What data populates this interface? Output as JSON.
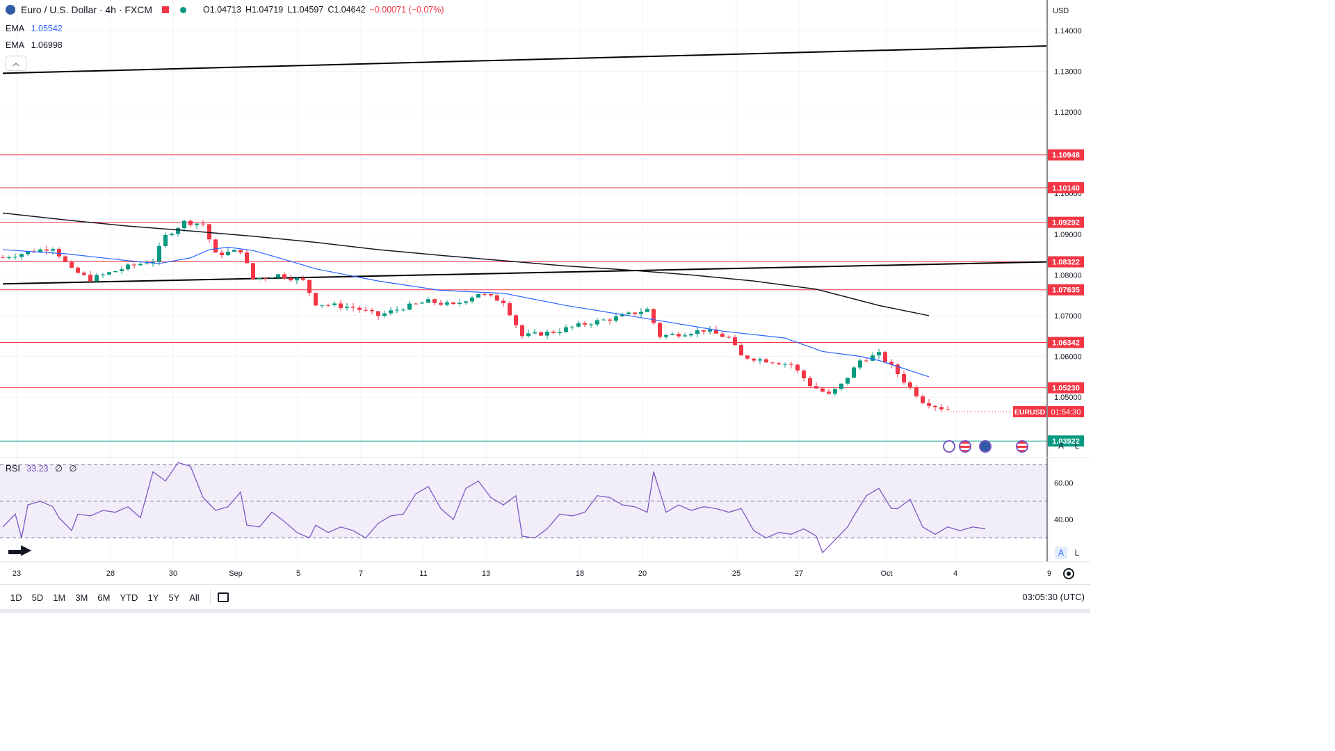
{
  "header": {
    "symbol_title": "Euro / U.S. Dollar · 4h · FXCM",
    "open": "O1.04713",
    "high": "H1.04719",
    "low": "L1.04597",
    "close": "C1.04642",
    "change": "−0.00071 (−0.07%)"
  },
  "ema_fast": {
    "label": "EMA",
    "value": "1.05542",
    "color": "#2962ff"
  },
  "ema_slow": {
    "label": "EMA",
    "value": "1.06998",
    "color": "#131722"
  },
  "currency": "USD",
  "price_axis": {
    "ticks": [
      "1.14000",
      "1.13000",
      "1.12000",
      "1.10000",
      "1.09000",
      "1.08000",
      "1.07000",
      "1.06000",
      "1.05000"
    ]
  },
  "levels": [
    {
      "label": "1.10948",
      "value": 1.10948,
      "color": "#f23645"
    },
    {
      "label": "1.10140",
      "value": 1.1014,
      "color": "#f23645"
    },
    {
      "label": "1.09292",
      "value": 1.09292,
      "color": "#f23645"
    },
    {
      "label": "1.08322",
      "value": 1.08322,
      "color": "#f23645"
    },
    {
      "label": "1.07635",
      "value": 1.07635,
      "color": "#f23645"
    },
    {
      "label": "1.06342",
      "value": 1.06342,
      "color": "#f23645"
    },
    {
      "label": "1.05230",
      "value": 1.0523,
      "color": "#f23645"
    },
    {
      "label": "1.03922",
      "value": 1.03922,
      "color": "#089981"
    }
  ],
  "current_price": {
    "symbol": "EURUSD",
    "countdown": "01:54:30",
    "value": 1.04642
  },
  "rsi": {
    "label": "RSI",
    "value": "33.23",
    "extra1": "∅",
    "extra2": "∅",
    "ticks": [
      "60.00",
      "40.00"
    ],
    "upper_band": 70,
    "middle_band": 50,
    "lower_band": 30,
    "color": "#7e57c2"
  },
  "time_axis": {
    "ticks": [
      "23",
      "28",
      "30",
      "Sep",
      "5",
      "7",
      "11",
      "13",
      "18",
      "20",
      "25",
      "27",
      "Oct",
      "4",
      "9"
    ]
  },
  "timeframes": [
    "1D",
    "5D",
    "1M",
    "3M",
    "6M",
    "YTD",
    "1Y",
    "5Y",
    "All"
  ],
  "clock": "03:05:30 (UTC)",
  "scale_buttons": {
    "auto": "A",
    "log": "L"
  },
  "chart_data": {
    "type": "candlestick",
    "title": "Euro / U.S. Dollar · 4h · FXCM",
    "y_range": [
      1.0355,
      1.1475
    ],
    "x_range_index": [
      0,
      166
    ],
    "candles": [],
    "ema_fast_points": [
      [
        0,
        1.0862
      ],
      [
        10,
        1.0852
      ],
      [
        20,
        1.0835
      ],
      [
        25,
        1.0828
      ],
      [
        30,
        1.0842
      ],
      [
        33,
        1.0862
      ],
      [
        36,
        1.0868
      ],
      [
        40,
        1.086
      ],
      [
        45,
        1.0838
      ],
      [
        50,
        1.0815
      ],
      [
        60,
        1.0785
      ],
      [
        70,
        1.0762
      ],
      [
        80,
        1.0755
      ],
      [
        90,
        1.0725
      ],
      [
        100,
        1.07
      ],
      [
        106,
        1.0685
      ],
      [
        115,
        1.0662
      ],
      [
        125,
        1.0645
      ],
      [
        131,
        1.0612
      ],
      [
        137,
        1.06
      ],
      [
        140,
        1.059
      ],
      [
        148,
        1.055
      ]
    ],
    "ema_slow_points": [
      [
        0,
        1.0952
      ],
      [
        10,
        1.0935
      ],
      [
        20,
        1.092
      ],
      [
        30,
        1.0908
      ],
      [
        40,
        1.0895
      ],
      [
        50,
        1.088
      ],
      [
        60,
        1.0862
      ],
      [
        70,
        1.0848
      ],
      [
        80,
        1.0835
      ],
      [
        90,
        1.0822
      ],
      [
        100,
        1.0812
      ],
      [
        110,
        1.08
      ],
      [
        120,
        1.0785
      ],
      [
        130,
        1.0765
      ],
      [
        140,
        1.0725
      ],
      [
        148,
        1.07
      ]
    ],
    "trendlines": [
      {
        "name": "upper-channel",
        "from": [
          0,
          1.1295
        ],
        "to": [
          166,
          1.1362
        ]
      },
      {
        "name": "lower-channel",
        "from": [
          0,
          1.0778
        ],
        "to": [
          166,
          1.0832
        ]
      }
    ],
    "rsi_points": [
      [
        0,
        36
      ],
      [
        2,
        43
      ],
      [
        3,
        30
      ],
      [
        4,
        48
      ],
      [
        6,
        50
      ],
      [
        8,
        47
      ],
      [
        9,
        41
      ],
      [
        11,
        34
      ],
      [
        12,
        43
      ],
      [
        14,
        42
      ],
      [
        16,
        45
      ],
      [
        18,
        44
      ],
      [
        20,
        47
      ],
      [
        22,
        41
      ],
      [
        24,
        66
      ],
      [
        26,
        61
      ],
      [
        28,
        71
      ],
      [
        30,
        69
      ],
      [
        32,
        52
      ],
      [
        34,
        45
      ],
      [
        36,
        47
      ],
      [
        38,
        55
      ],
      [
        39,
        37
      ],
      [
        41,
        36
      ],
      [
        43,
        44
      ],
      [
        45,
        39
      ],
      [
        47,
        33
      ],
      [
        49,
        30
      ],
      [
        50,
        37
      ],
      [
        52,
        33
      ],
      [
        54,
        36
      ],
      [
        56,
        34
      ],
      [
        58,
        30
      ],
      [
        60,
        38
      ],
      [
        62,
        42
      ],
      [
        64,
        43
      ],
      [
        66,
        54
      ],
      [
        68,
        58
      ],
      [
        70,
        46
      ],
      [
        72,
        40
      ],
      [
        74,
        57
      ],
      [
        76,
        61
      ],
      [
        78,
        52
      ],
      [
        80,
        48
      ],
      [
        82,
        53
      ],
      [
        83,
        31
      ],
      [
        85,
        30
      ],
      [
        87,
        35
      ],
      [
        89,
        43
      ],
      [
        91,
        42
      ],
      [
        93,
        44
      ],
      [
        95,
        53
      ],
      [
        97,
        52
      ],
      [
        99,
        48
      ],
      [
        101,
        47
      ],
      [
        103,
        44
      ],
      [
        104,
        66
      ],
      [
        106,
        44
      ],
      [
        108,
        48
      ],
      [
        110,
        45
      ],
      [
        112,
        47
      ],
      [
        114,
        46
      ],
      [
        116,
        44
      ],
      [
        118,
        46
      ],
      [
        120,
        34
      ],
      [
        122,
        30
      ],
      [
        124,
        33
      ],
      [
        126,
        32
      ],
      [
        128,
        35
      ],
      [
        130,
        31
      ],
      [
        131,
        22
      ],
      [
        133,
        29
      ],
      [
        135,
        36
      ],
      [
        136,
        42
      ],
      [
        138,
        53
      ],
      [
        140,
        57
      ],
      [
        142,
        46
      ],
      [
        143,
        46
      ],
      [
        145,
        51
      ],
      [
        147,
        36
      ],
      [
        149,
        32
      ],
      [
        151,
        36
      ],
      [
        153,
        34
      ],
      [
        155,
        36
      ],
      [
        157,
        35
      ]
    ],
    "ohlc_last": {
      "open": 1.04713,
      "high": 1.04719,
      "low": 1.04597,
      "close": 1.04642
    }
  }
}
